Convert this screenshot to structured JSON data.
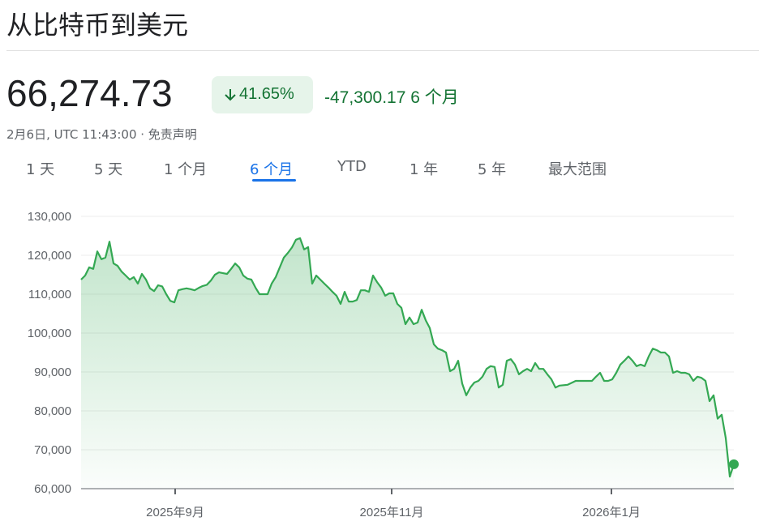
{
  "header": {
    "title": "从比特币到美元"
  },
  "quote": {
    "price": "66,274.73",
    "change_percent": "41.65%",
    "change": "-47,300.17",
    "period": "6 个月",
    "timestamp": "2月6日, UTC 11:43:00 · 免责声明"
  },
  "tabs": [
    "1 天",
    "5 天",
    "1 个月",
    "6 个月",
    "YTD",
    "1 年",
    "5 年",
    "最大范围"
  ],
  "chart_data": {
    "type": "line",
    "color": "#34a853",
    "grid": true,
    "values": [
      113750,
      114800,
      116900,
      116500,
      121000,
      119000,
      119400,
      123500,
      117900,
      117300,
      115800,
      114800,
      113750,
      114400,
      112700,
      115200,
      113750,
      111500,
      110800,
      112300,
      112000,
      110000,
      108300,
      107900,
      111000,
      111300,
      111500,
      111300,
      111000,
      111600,
      112100,
      112400,
      113500,
      115000,
      115600,
      115400,
      115200,
      116500,
      117900,
      116900,
      114800,
      114000,
      113750,
      111700,
      110000,
      110000,
      110000,
      112700,
      114400,
      116900,
      119400,
      120600,
      122000,
      124000,
      124400,
      121500,
      122100,
      112700,
      114800,
      113750,
      112700,
      111700,
      110600,
      109600,
      107500,
      110600,
      108100,
      108100,
      108500,
      111000,
      111000,
      110600,
      114800,
      113100,
      111700,
      109600,
      110200,
      110200,
      107500,
      106500,
      102300,
      104000,
      102300,
      102700,
      106000,
      103300,
      101300,
      97100,
      96000,
      95600,
      95000,
      90200,
      90800,
      92900,
      87000,
      84000,
      86000,
      87300,
      87700,
      88800,
      90800,
      91500,
      91300,
      86000,
      86700,
      92900,
      93300,
      91900,
      89400,
      90200,
      90800,
      90200,
      92300,
      90800,
      90800,
      89400,
      88100,
      86000,
      86500,
      86600,
      86700,
      87200,
      87700,
      87700,
      87700,
      87700,
      87700,
      88800,
      89800,
      87700,
      87700,
      88100,
      89800,
      91900,
      92900,
      94000,
      92900,
      91500,
      91900,
      91500,
      94000,
      96000,
      95600,
      95000,
      95000,
      94000,
      89800,
      90200,
      89800,
      89800,
      89400,
      87700,
      88800,
      88500,
      87700,
      82500,
      84000,
      78000,
      79000,
      73000,
      63100,
      66274.73
    ],
    "xlim": [
      0,
      161
    ],
    "xticks": [
      {
        "value": 23.2,
        "label": "2025年9月"
      },
      {
        "value": 76.6,
        "label": "2025年11月"
      },
      {
        "value": 130.8,
        "label": "2026年1月"
      }
    ],
    "ylim": [
      60000,
      130000
    ],
    "yticks": [
      {
        "value": 60000,
        "label": "60,000"
      },
      {
        "value": 70000,
        "label": "70,000"
      },
      {
        "value": 80000,
        "label": "80,000"
      },
      {
        "value": 90000,
        "label": "90,000"
      },
      {
        "value": 100000,
        "label": "100,000"
      },
      {
        "value": 110000,
        "label": "110,000"
      },
      {
        "value": 120000,
        "label": "120,000"
      },
      {
        "value": 130000,
        "label": "130,000"
      }
    ]
  }
}
